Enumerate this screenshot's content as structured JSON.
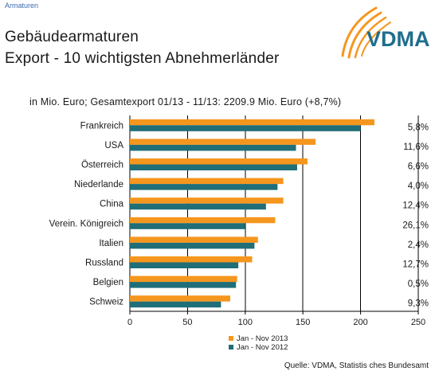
{
  "header": {
    "section": "Armaturen",
    "title_line1": "Gebäudearmaturen",
    "title_line2": "Export - 10 wichtigsten Abnehmerländer",
    "logo_text": "VDMA"
  },
  "subtitle": "in Mio. Euro; Gesamtexport 01/13 - 11/13: 2209.9 Mio. Euro (+8,7%)",
  "source": "Quelle: VDMA, Statistis ches Bundesamt",
  "colors": {
    "series_2013": "#f5961e",
    "series_2012": "#1f6e78",
    "grid": "#000000"
  },
  "chart_data": {
    "type": "bar",
    "orientation": "horizontal",
    "categories": [
      "Frankreich",
      "USA",
      "Österreich",
      "Niederlande",
      "China",
      "Verein. Königreich",
      "Italien",
      "Russland",
      "Belgien",
      "Schweiz"
    ],
    "series": [
      {
        "name": "Jan - Nov 2013",
        "values": [
          212,
          161,
          154,
          133,
          133,
          126,
          111,
          106,
          93,
          87
        ]
      },
      {
        "name": "Jan - Nov 2012",
        "values": [
          200,
          144,
          145,
          128,
          118,
          100,
          108,
          94,
          92,
          79
        ]
      }
    ],
    "change_labels": [
      "5,8%",
      "11,6%",
      "6,6%",
      "4,0%",
      "12,4%",
      "26,1%",
      "2,4%",
      "12,7%",
      "0,5%",
      "9,3%"
    ],
    "xlim": [
      0,
      250
    ],
    "xticks": [
      0,
      50,
      100,
      150,
      200,
      250
    ],
    "grid": true,
    "legend_position": "bottom"
  }
}
